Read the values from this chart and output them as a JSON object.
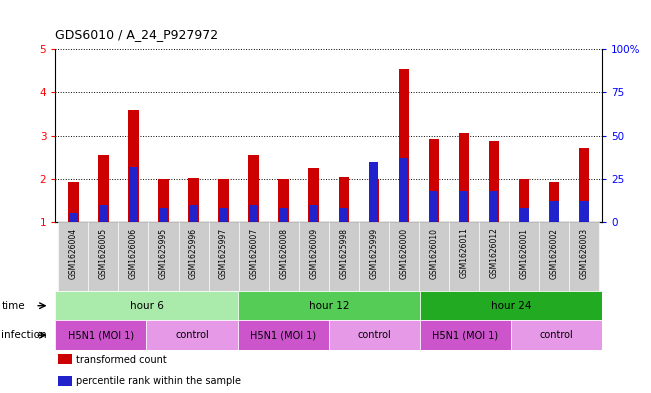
{
  "title": "GDS6010 / A_24_P927972",
  "samples": [
    "GSM1626004",
    "GSM1626005",
    "GSM1626006",
    "GSM1625995",
    "GSM1625996",
    "GSM1625997",
    "GSM1626007",
    "GSM1626008",
    "GSM1626009",
    "GSM1625998",
    "GSM1625999",
    "GSM1626000",
    "GSM1626010",
    "GSM1626011",
    "GSM1626012",
    "GSM1626001",
    "GSM1626002",
    "GSM1626003"
  ],
  "red_values": [
    1.93,
    2.55,
    3.6,
    2.0,
    2.02,
    2.0,
    2.55,
    2.0,
    2.25,
    2.05,
    2.0,
    4.55,
    2.93,
    3.05,
    2.88,
    2.0,
    1.93,
    2.72
  ],
  "blue_pct": [
    5,
    10,
    32,
    8,
    10,
    8,
    10,
    8,
    10,
    8,
    35,
    37,
    18,
    18,
    18,
    8,
    12,
    12
  ],
  "ylim_left": [
    1,
    5
  ],
  "ylim_right": [
    0,
    100
  ],
  "yticks_left": [
    1,
    2,
    3,
    4,
    5
  ],
  "yticks_right": [
    0,
    25,
    50,
    75,
    100
  ],
  "ytick_labels_left": [
    "1",
    "2",
    "3",
    "4",
    "5"
  ],
  "ytick_labels_right": [
    "0",
    "25",
    "50",
    "75",
    "100%"
  ],
  "time_groups": [
    {
      "label": "hour 6",
      "start": 0,
      "end": 6,
      "color": "#aaeaaa"
    },
    {
      "label": "hour 12",
      "start": 6,
      "end": 12,
      "color": "#55cc55"
    },
    {
      "label": "hour 24",
      "start": 12,
      "end": 18,
      "color": "#22aa22"
    }
  ],
  "infection_groups": [
    {
      "label": "H5N1 (MOI 1)",
      "start": 0,
      "end": 3,
      "color": "#cc55cc"
    },
    {
      "label": "control",
      "start": 3,
      "end": 6,
      "color": "#e699e6"
    },
    {
      "label": "H5N1 (MOI 1)",
      "start": 6,
      "end": 9,
      "color": "#cc55cc"
    },
    {
      "label": "control",
      "start": 9,
      "end": 12,
      "color": "#e699e6"
    },
    {
      "label": "H5N1 (MOI 1)",
      "start": 12,
      "end": 15,
      "color": "#cc55cc"
    },
    {
      "label": "control",
      "start": 15,
      "end": 18,
      "color": "#e699e6"
    }
  ],
  "bar_width": 0.35,
  "red_color": "#cc0000",
  "blue_color": "#2222cc",
  "sample_bg_color": "#cccccc",
  "legend_items": [
    {
      "label": "transformed count",
      "color": "#cc0000",
      "marker_color": "#cc0000"
    },
    {
      "label": "percentile rank within the sample",
      "color": "#2222cc",
      "marker_color": "#2222cc"
    }
  ],
  "time_label": "time",
  "infection_label": "infection"
}
